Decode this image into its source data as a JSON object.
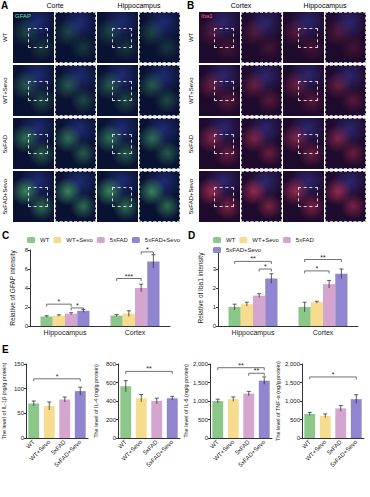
{
  "image_panels": [
    {
      "label": "A",
      "stain": "GFAP",
      "columns": [
        "Corte",
        "Hippocampus"
      ],
      "rows": [
        "WT",
        "WT+Sevo",
        "5xFAD",
        "5xFAD+Sevo"
      ]
    },
    {
      "label": "B",
      "stain": "Iba1",
      "columns": [
        "Cortex",
        "Hippocampus"
      ],
      "rows": [
        "WT",
        "WT+Sevo",
        "5xFAD",
        "5xFAD+Sevo"
      ]
    }
  ],
  "chart_data": [
    {
      "type": "bar",
      "panel": "C",
      "y_label": "Relative of GFAP intensity",
      "categories": [
        "Hippocampus",
        "Cortex"
      ],
      "series": [
        {
          "name": "WT",
          "color": "#8cc78a",
          "values": [
            1.0,
            1.1
          ],
          "errors": [
            0.08,
            0.1
          ]
        },
        {
          "name": "WT+Sevo",
          "color": "#f6dc8e",
          "values": [
            1.1,
            1.3
          ],
          "errors": [
            0.08,
            0.3
          ]
        },
        {
          "name": "5xFAD",
          "color": "#d4a5cf",
          "values": [
            1.3,
            4.0
          ],
          "errors": [
            0.1,
            0.4
          ]
        },
        {
          "name": "5xFAD+Sevo",
          "color": "#8f86cf",
          "values": [
            1.6,
            6.8
          ],
          "errors": [
            0.15,
            0.7
          ]
        }
      ],
      "annotations": [
        {
          "category": "Hippocampus",
          "from": "WT",
          "to": "5xFAD",
          "y": 2.3,
          "label": "*"
        },
        {
          "category": "Hippocampus",
          "from": "5xFAD",
          "to": "5xFAD+Sevo",
          "y": 1.9,
          "label": "*"
        },
        {
          "category": "Cortex",
          "from": "WT",
          "to": "5xFAD",
          "y": 5.0,
          "label": "***"
        },
        {
          "category": "Cortex",
          "from": "5xFAD",
          "to": "5xFAD+Sevo",
          "y": 7.8,
          "label": "*"
        }
      ],
      "ylim": [
        0,
        8
      ],
      "yticks": [
        0,
        2,
        4,
        6,
        8
      ],
      "grid": false,
      "legend": "top"
    },
    {
      "type": "bar",
      "panel": "D",
      "y_label": "Relative of Iba1 intensity",
      "categories": [
        "Hippocampus",
        "Cortex"
      ],
      "series": [
        {
          "name": "WT",
          "color": "#8cc78a",
          "values": [
            1.0,
            1.0
          ],
          "errors": [
            0.15,
            0.25
          ]
        },
        {
          "name": "WT+Sevo",
          "color": "#f6dc8e",
          "values": [
            1.15,
            1.25
          ],
          "errors": [
            0.1,
            0.05
          ]
        },
        {
          "name": "5xFAD",
          "color": "#d4a5cf",
          "values": [
            1.6,
            2.2
          ],
          "errors": [
            0.1,
            0.2
          ]
        },
        {
          "name": "5xFAD+Sevo",
          "color": "#8f86cf",
          "values": [
            2.5,
            2.75
          ],
          "errors": [
            0.25,
            0.25
          ]
        }
      ],
      "annotations": [
        {
          "category": "Hippocampus",
          "from": "WT",
          "to": "5xFAD+Sevo",
          "y": 3.4,
          "label": "**"
        },
        {
          "category": "Hippocampus",
          "from": "5xFAD",
          "to": "5xFAD+Sevo",
          "y": 3.0,
          "label": "*"
        },
        {
          "category": "Cortex",
          "from": "WT",
          "to": "5xFAD",
          "y": 2.9,
          "label": "*"
        },
        {
          "category": "Cortex",
          "from": "WT",
          "to": "5xFAD+Sevo",
          "y": 3.5,
          "label": "**"
        }
      ],
      "ylim": [
        0,
        4
      ],
      "yticks": [
        0,
        1,
        2,
        3,
        4
      ],
      "grid": false,
      "legend": "top"
    },
    {
      "type": "bar",
      "panel": "E",
      "y_label": "The level of IL-1β (ng/g protein)",
      "categories": [
        "WT",
        "WT+Sevo",
        "5xFAD",
        "5xFAD+Sevo"
      ],
      "values": [
        70,
        65,
        78,
        95
      ],
      "errors": [
        5,
        8,
        5,
        8
      ],
      "colors": [
        "#8cc78a",
        "#f6dc8e",
        "#d4a5cf",
        "#8f86cf"
      ],
      "annotations": [
        {
          "from": "WT",
          "to": "5xFAD+Sevo",
          "y": 120,
          "label": "*"
        }
      ],
      "ylim": [
        0,
        150
      ],
      "yticks": [
        0,
        50,
        100,
        150
      ],
      "grid": false
    },
    {
      "type": "bar",
      "y_label": "The level of IL-4 (ng/g protein)",
      "categories": [
        "WT",
        "WT+Sevo",
        "5xFAD",
        "5xFAD+Sevo"
      ],
      "values": [
        560,
        430,
        400,
        430
      ],
      "errors": [
        60,
        40,
        30,
        20
      ],
      "colors": [
        "#8cc78a",
        "#f6dc8e",
        "#d4a5cf",
        "#8f86cf"
      ],
      "annotations": [
        {
          "from": "WT",
          "to": "5xFAD+Sevo",
          "y": 720,
          "label": "**"
        }
      ],
      "ylim": [
        0,
        800
      ],
      "yticks": [
        0,
        200,
        400,
        600,
        800
      ],
      "grid": false
    },
    {
      "type": "bar",
      "y_label": "The level of IL-6 (ng/g protein)",
      "categories": [
        "WT",
        "WT+Sevo",
        "5xFAD",
        "5xFAD+Sevo"
      ],
      "values": [
        1000,
        1050,
        1200,
        1550
      ],
      "errors": [
        50,
        60,
        60,
        100
      ],
      "colors": [
        "#8cc78a",
        "#f6dc8e",
        "#d4a5cf",
        "#8f86cf"
      ],
      "annotations": [
        {
          "from": "WT",
          "to": "5xFAD+Sevo",
          "y": 1900,
          "label": "**"
        },
        {
          "from": "5xFAD",
          "to": "5xFAD+Sevo",
          "y": 1750,
          "label": "**"
        }
      ],
      "ylim": [
        0,
        2000
      ],
      "yticks": [
        0,
        500,
        1000,
        1500,
        2000
      ],
      "grid": false
    },
    {
      "type": "bar",
      "y_label": "The level of TNF-α (ng/g protein)",
      "categories": [
        "WT",
        "WT+Sevo",
        "5xFAD",
        "5xFAD+Sevo"
      ],
      "values": [
        650,
        600,
        800,
        1050
      ],
      "errors": [
        40,
        50,
        80,
        120
      ],
      "colors": [
        "#8cc78a",
        "#f6dc8e",
        "#d4a5cf",
        "#8f86cf"
      ],
      "annotations": [
        {
          "from": "WT",
          "to": "5xFAD+Sevo",
          "y": 1650,
          "label": "*"
        }
      ],
      "ylim": [
        0,
        2000
      ],
      "yticks": [
        0,
        500,
        1000,
        1500,
        2000
      ],
      "grid": false
    }
  ]
}
